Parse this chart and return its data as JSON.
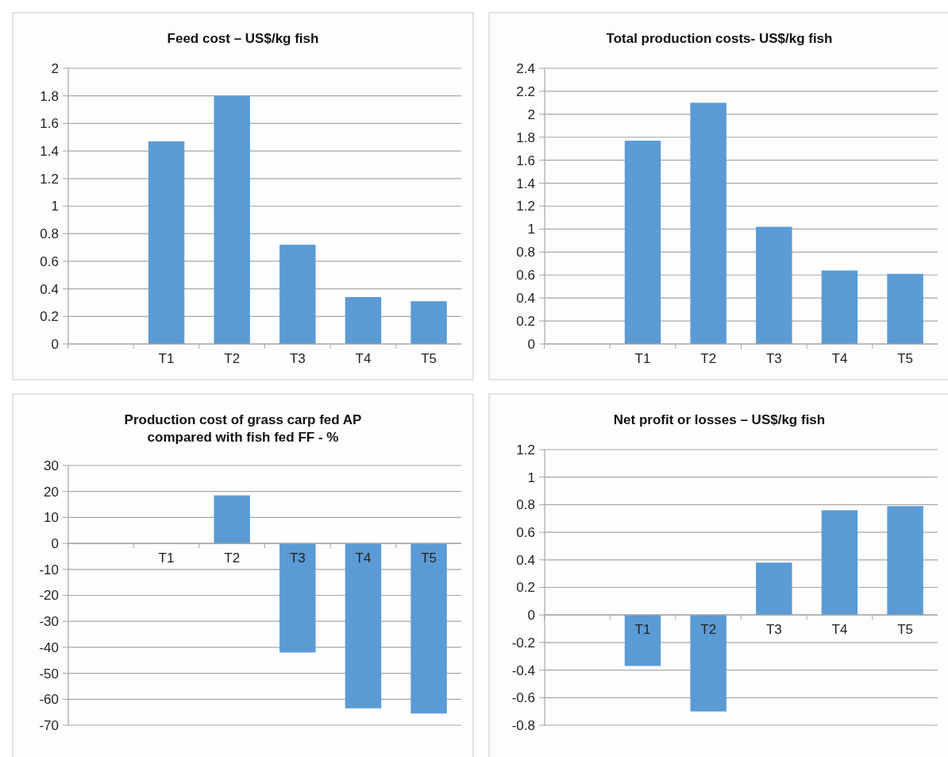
{
  "chart_data": [
    {
      "type": "bar",
      "title": "Feed cost – US$/kg fish",
      "categories": [
        null,
        "T1",
        "T2",
        "T3",
        "T4",
        "T5"
      ],
      "values": [
        null,
        1.47,
        1.8,
        0.72,
        0.34,
        0.31
      ],
      "color": "#5b9bd5",
      "ylim": [
        0,
        2
      ],
      "yticks": [
        0,
        0.2,
        0.4,
        0.6,
        0.8,
        1,
        1.2,
        1.4,
        1.6,
        1.8,
        2
      ],
      "grid": "y"
    },
    {
      "type": "bar",
      "title": "Total production costs- US$/kg fish",
      "categories": [
        null,
        "T1",
        "T2",
        "T3",
        "T4",
        "T5"
      ],
      "values": [
        null,
        1.77,
        2.1,
        1.02,
        0.64,
        0.61
      ],
      "color": "#5b9bd5",
      "ylim": [
        0,
        2.4
      ],
      "yticks": [
        0,
        0.2,
        0.4,
        0.6,
        0.8,
        1,
        1.2,
        1.4,
        1.6,
        1.8,
        2,
        2.2,
        2.4
      ],
      "grid": "y"
    },
    {
      "type": "bar",
      "title": "Production cost of grass carp fed AP\ncompared with fish fed FF - %",
      "categories": [
        null,
        "T1",
        "T2",
        "T3",
        "T4",
        "T5"
      ],
      "values": [
        null,
        null,
        18.5,
        -42,
        -63.5,
        -65.5
      ],
      "color": "#5b9bd5",
      "ylim": [
        -70,
        30
      ],
      "yticks": [
        -70,
        -60,
        -50,
        -40,
        -30,
        -20,
        -10,
        0,
        10,
        20,
        30
      ],
      "grid": "y"
    },
    {
      "type": "bar",
      "title": "Net profit or losses – US$/kg fish",
      "categories": [
        null,
        "T1",
        "T2",
        "T3",
        "T4",
        "T5"
      ],
      "values": [
        null,
        -0.37,
        -0.7,
        0.38,
        0.76,
        0.79
      ],
      "color": "#5b9bd5",
      "ylim": [
        -0.8,
        1.2
      ],
      "yticks": [
        -0.8,
        -0.6,
        -0.4,
        -0.2,
        0,
        0.2,
        0.4,
        0.6,
        0.8,
        1,
        1.2
      ],
      "grid": "y"
    }
  ]
}
